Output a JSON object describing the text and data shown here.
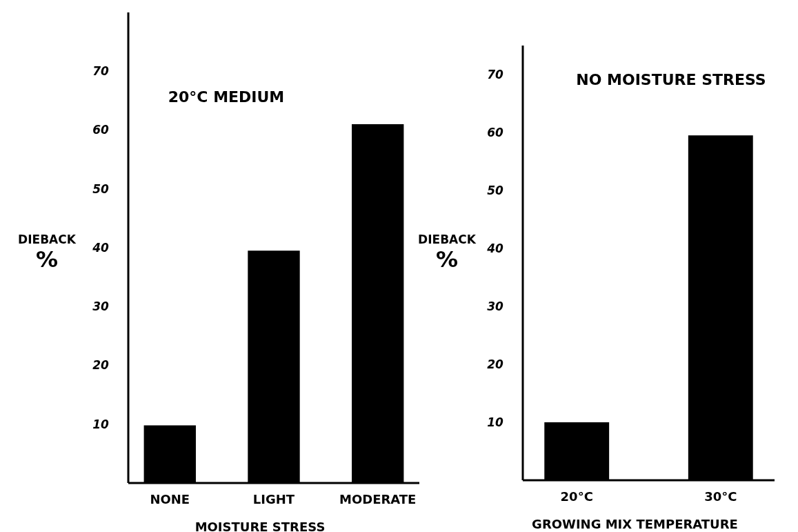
{
  "chart_data": [
    {
      "type": "bar",
      "title": "20°C MEDIUM",
      "ylabel": "DIEBACK %",
      "xlabel": "MOISTURE STRESS",
      "categories": [
        "NONE",
        "LIGHT",
        "MODERATE"
      ],
      "values": [
        9.8,
        39.5,
        61
      ],
      "color": "#000000",
      "ylim": [
        0,
        80
      ],
      "yticks": [
        10,
        20,
        30,
        40,
        50,
        60,
        70
      ]
    },
    {
      "type": "bar",
      "title": "NO MOISTURE STRESS",
      "ylabel": "DIEBACK %",
      "xlabel": "GROWING MIX TEMPERATURE",
      "categories": [
        "20°C",
        "30°C"
      ],
      "values": [
        10,
        59.5
      ],
      "color": "#000000",
      "ylim": [
        0,
        75
      ],
      "yticks": [
        10,
        20,
        30,
        40,
        50,
        60,
        70
      ]
    }
  ]
}
